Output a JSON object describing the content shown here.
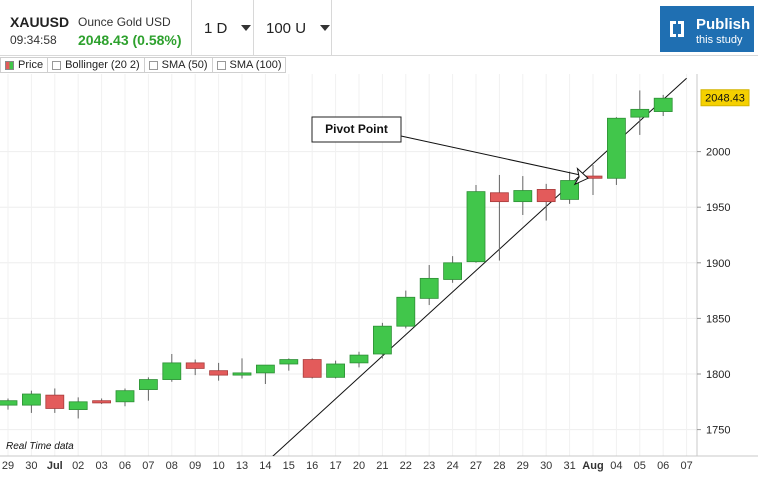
{
  "header": {
    "symbol": "XAUUSD",
    "name": "Ounce Gold USD",
    "time": "09:34:58",
    "last": "2048.43 (0.58%)",
    "last_color": "#2ea12e",
    "interval": "1 D",
    "range": "100 U",
    "publish_title": "Publish",
    "publish_sub": "this study",
    "publish_color": "#1f6fb2"
  },
  "legend": [
    {
      "label": "Price",
      "icon": "price-swatch-icon"
    },
    {
      "label": "Bollinger (20 2)",
      "icon": "checkbox-icon"
    },
    {
      "label": "SMA (50)",
      "icon": "checkbox-icon"
    },
    {
      "label": "SMA (100)",
      "icon": "checkbox-icon"
    }
  ],
  "footer": {
    "realtime": "Real Time data"
  },
  "chart_data": {
    "type": "candlestick",
    "title": "",
    "xlabel": "",
    "ylabel": "",
    "ylim": [
      1720,
      2070
    ],
    "y_ticks": [
      1750,
      1800,
      1850,
      1900,
      1950,
      2000
    ],
    "x_ticks": [
      "29",
      "30",
      "Jul",
      "02",
      "03",
      "06",
      "07",
      "08",
      "09",
      "10",
      "13",
      "14",
      "15",
      "16",
      "17",
      "20",
      "21",
      "22",
      "23",
      "24",
      "27",
      "28",
      "29",
      "30",
      "31",
      "Aug",
      "04",
      "05",
      "06",
      "07"
    ],
    "grid": true,
    "up_color": "#41c64b",
    "down_color": "#e35b5b",
    "last_price": "2048.43",
    "last_price_value": 2048.43,
    "last_price_color": "#f5d000",
    "annotation": {
      "text": "Pivot Point",
      "target_date": "Aug",
      "target_value": 1976
    },
    "trendline": {
      "from": {
        "date": "14",
        "value": 1720
      },
      "to": {
        "date": "07",
        "value": 2066
      }
    },
    "candles": [
      {
        "date": "29",
        "open": 1772,
        "high": 1778,
        "low": 1768,
        "close": 1776
      },
      {
        "date": "30",
        "open": 1772,
        "high": 1785,
        "low": 1765,
        "close": 1782
      },
      {
        "date": "Jul",
        "open": 1781,
        "high": 1787,
        "low": 1765,
        "close": 1769
      },
      {
        "date": "02",
        "open": 1768,
        "high": 1779,
        "low": 1760,
        "close": 1775
      },
      {
        "date": "03",
        "open": 1776,
        "high": 1778,
        "low": 1773,
        "close": 1774
      },
      {
        "date": "06",
        "open": 1775,
        "high": 1787,
        "low": 1771,
        "close": 1785
      },
      {
        "date": "07",
        "open": 1786,
        "high": 1797,
        "low": 1776,
        "close": 1795
      },
      {
        "date": "08",
        "open": 1795,
        "high": 1818,
        "low": 1793,
        "close": 1810
      },
      {
        "date": "09",
        "open": 1810,
        "high": 1813,
        "low": 1799,
        "close": 1805
      },
      {
        "date": "10",
        "open": 1803,
        "high": 1810,
        "low": 1794,
        "close": 1799
      },
      {
        "date": "13",
        "open": 1799,
        "high": 1814,
        "low": 1796,
        "close": 1801
      },
      {
        "date": "14",
        "open": 1801,
        "high": 1808,
        "low": 1791,
        "close": 1808
      },
      {
        "date": "15",
        "open": 1809,
        "high": 1814,
        "low": 1803,
        "close": 1813
      },
      {
        "date": "16",
        "open": 1813,
        "high": 1814,
        "low": 1796,
        "close": 1797
      },
      {
        "date": "17",
        "open": 1797,
        "high": 1812,
        "low": 1796,
        "close": 1809
      },
      {
        "date": "20",
        "open": 1810,
        "high": 1820,
        "low": 1806,
        "close": 1817
      },
      {
        "date": "21",
        "open": 1818,
        "high": 1846,
        "low": 1814,
        "close": 1843
      },
      {
        "date": "22",
        "open": 1843,
        "high": 1875,
        "low": 1841,
        "close": 1869
      },
      {
        "date": "23",
        "open": 1868,
        "high": 1898,
        "low": 1862,
        "close": 1886
      },
      {
        "date": "24",
        "open": 1885,
        "high": 1906,
        "low": 1882,
        "close": 1900
      },
      {
        "date": "27",
        "open": 1901,
        "high": 1970,
        "low": 1900,
        "close": 1964
      },
      {
        "date": "28",
        "open": 1963,
        "high": 1979,
        "low": 1902,
        "close": 1955
      },
      {
        "date": "29",
        "open": 1955,
        "high": 1978,
        "low": 1943,
        "close": 1965
      },
      {
        "date": "30",
        "open": 1966,
        "high": 1971,
        "low": 1938,
        "close": 1955
      },
      {
        "date": "31",
        "open": 1957,
        "high": 1982,
        "low": 1953,
        "close": 1974
      },
      {
        "date": "Aug",
        "open": 1978,
        "high": 1988,
        "low": 1961,
        "close": 1976
      },
      {
        "date": "04",
        "open": 1976,
        "high": 2031,
        "low": 1970,
        "close": 2030
      },
      {
        "date": "05",
        "open": 2031,
        "high": 2055,
        "low": 2015,
        "close": 2038
      },
      {
        "date": "06",
        "open": 2036,
        "high": 2051,
        "low": 2032,
        "close": 2048
      }
    ]
  }
}
